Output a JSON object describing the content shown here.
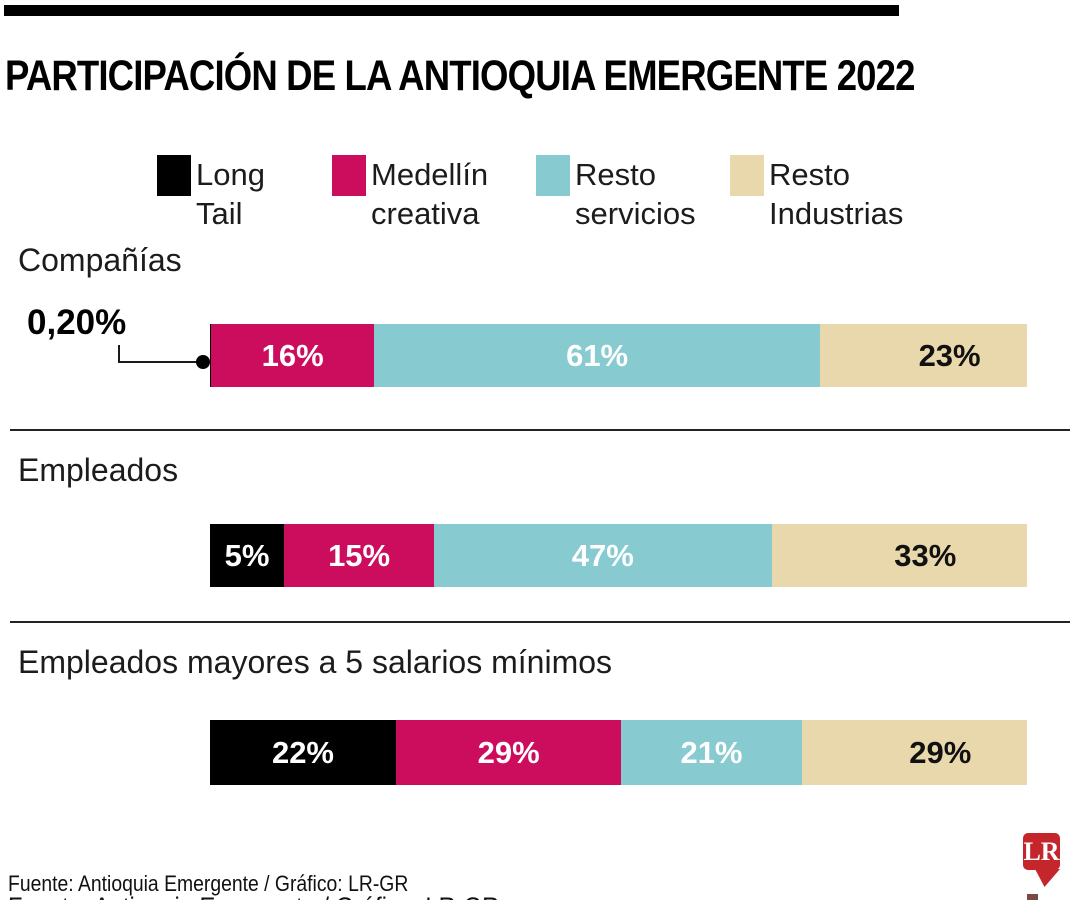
{
  "title": "PARTICIPACIÓN DE LA ANTIOQUIA EMERGENTE 2022",
  "legend": [
    {
      "line1": "Long",
      "line2": "Tail"
    },
    {
      "line1": "Medellín",
      "line2": "creativa"
    },
    {
      "line1": "Resto",
      "line2": "servicios"
    },
    {
      "line1": "Resto",
      "line2": "Industrias"
    }
  ],
  "chart_data": {
    "type": "bar",
    "orientation": "horizontal-stacked",
    "unit": "%",
    "legend_position": "top",
    "series": [
      {
        "name": "Long Tail",
        "color": "#000000",
        "label_color": "#ffffff"
      },
      {
        "name": "Medellín creativa",
        "color": "#cc0c5c",
        "label_color": "#ffffff"
      },
      {
        "name": "Resto servicios",
        "color": "#87cbd1",
        "label_color": "#ffffff"
      },
      {
        "name": "Resto Industrias",
        "color": "#e9d8ab",
        "label_color": "#111111"
      }
    ],
    "rows": [
      {
        "category": "Compañías",
        "values": [
          0.2,
          16,
          61,
          23
        ],
        "labels": [
          "",
          "16%",
          "61%",
          "23%"
        ],
        "annotation_label": "0,20%",
        "annotation_target_series": "Long Tail"
      },
      {
        "category": "Empleados",
        "values": [
          5,
          15,
          47,
          33
        ],
        "labels": [
          "5%",
          "15%",
          "47%",
          "33%"
        ]
      },
      {
        "category": "Empleados mayores a 5 salarios mínimos",
        "values": [
          22,
          29,
          21,
          29
        ],
        "labels": [
          "22%",
          "29%",
          "21%",
          "29%"
        ]
      }
    ]
  },
  "footer": {
    "source": "Fuente: Antioquia Emergente / Gráfico: LR-GR",
    "logo_text": "LR",
    "logo_color": "#c5262c"
  }
}
